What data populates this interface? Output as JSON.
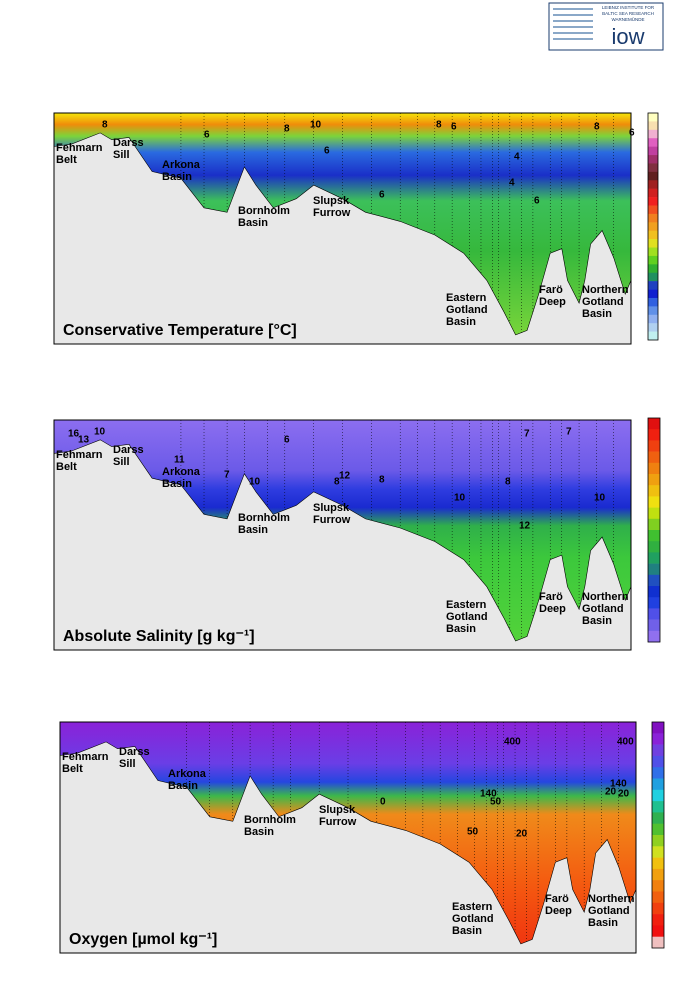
{
  "logo": {
    "lines": [
      "LEIBNIZ INSTITUTE FOR",
      "BALTIC SEA RESEARCH",
      "WARNEMÜNDE"
    ],
    "name": "iow"
  },
  "panels": [
    {
      "title": "Conservative Temperature [°C]",
      "places": [
        [
          "Fehmarn",
          "Belt"
        ],
        [
          "Darss",
          "Sill"
        ],
        [
          "Arkona",
          "Basin"
        ],
        [
          "Bornholm",
          "Basin"
        ],
        [
          "Slupsk",
          "Furrow"
        ],
        [
          "Eastern",
          "Gotland",
          "Basin"
        ],
        [
          "Farö",
          "Deep"
        ],
        [
          "Northern",
          "Gotland",
          "Basin"
        ]
      ],
      "contour_labels": [
        "8",
        "8",
        "10",
        "8",
        "6",
        "6",
        "6",
        "4",
        "6",
        "6",
        "8",
        "6",
        "4"
      ]
    },
    {
      "title": "Absolute Salinity [g kg⁻¹]",
      "places": [
        [
          "Fehmarn",
          "Belt"
        ],
        [
          "Darss",
          "Sill"
        ],
        [
          "Arkona",
          "Basin"
        ],
        [
          "Bornholm",
          "Basin"
        ],
        [
          "Slupsk",
          "Furrow"
        ],
        [
          "Eastern",
          "Gotland",
          "Basin"
        ],
        [
          "Farö",
          "Deep"
        ],
        [
          "Northern",
          "Gotland",
          "Basin"
        ]
      ],
      "contour_labels": [
        "16",
        "13",
        "10",
        "11",
        "7",
        "6",
        "8",
        "10",
        "12",
        "8",
        "10",
        "8",
        "12",
        "10",
        "7",
        "7"
      ]
    },
    {
      "title": "Oxygen [µmol kg⁻¹]",
      "places": [
        [
          "Fehmarn",
          "Belt"
        ],
        [
          "Darss",
          "Sill"
        ],
        [
          "Arkona",
          "Basin"
        ],
        [
          "Bornholm",
          "Basin"
        ],
        [
          "Slupsk",
          "Furrow"
        ],
        [
          "Eastern",
          "Gotland",
          "Basin"
        ],
        [
          "Farö",
          "Deep"
        ],
        [
          "Northern",
          "Gotland",
          "Basin"
        ]
      ],
      "contour_labels": [
        "400",
        "400",
        "140",
        "50",
        "20",
        "50",
        "20",
        "0",
        "140",
        "20"
      ]
    }
  ]
}
